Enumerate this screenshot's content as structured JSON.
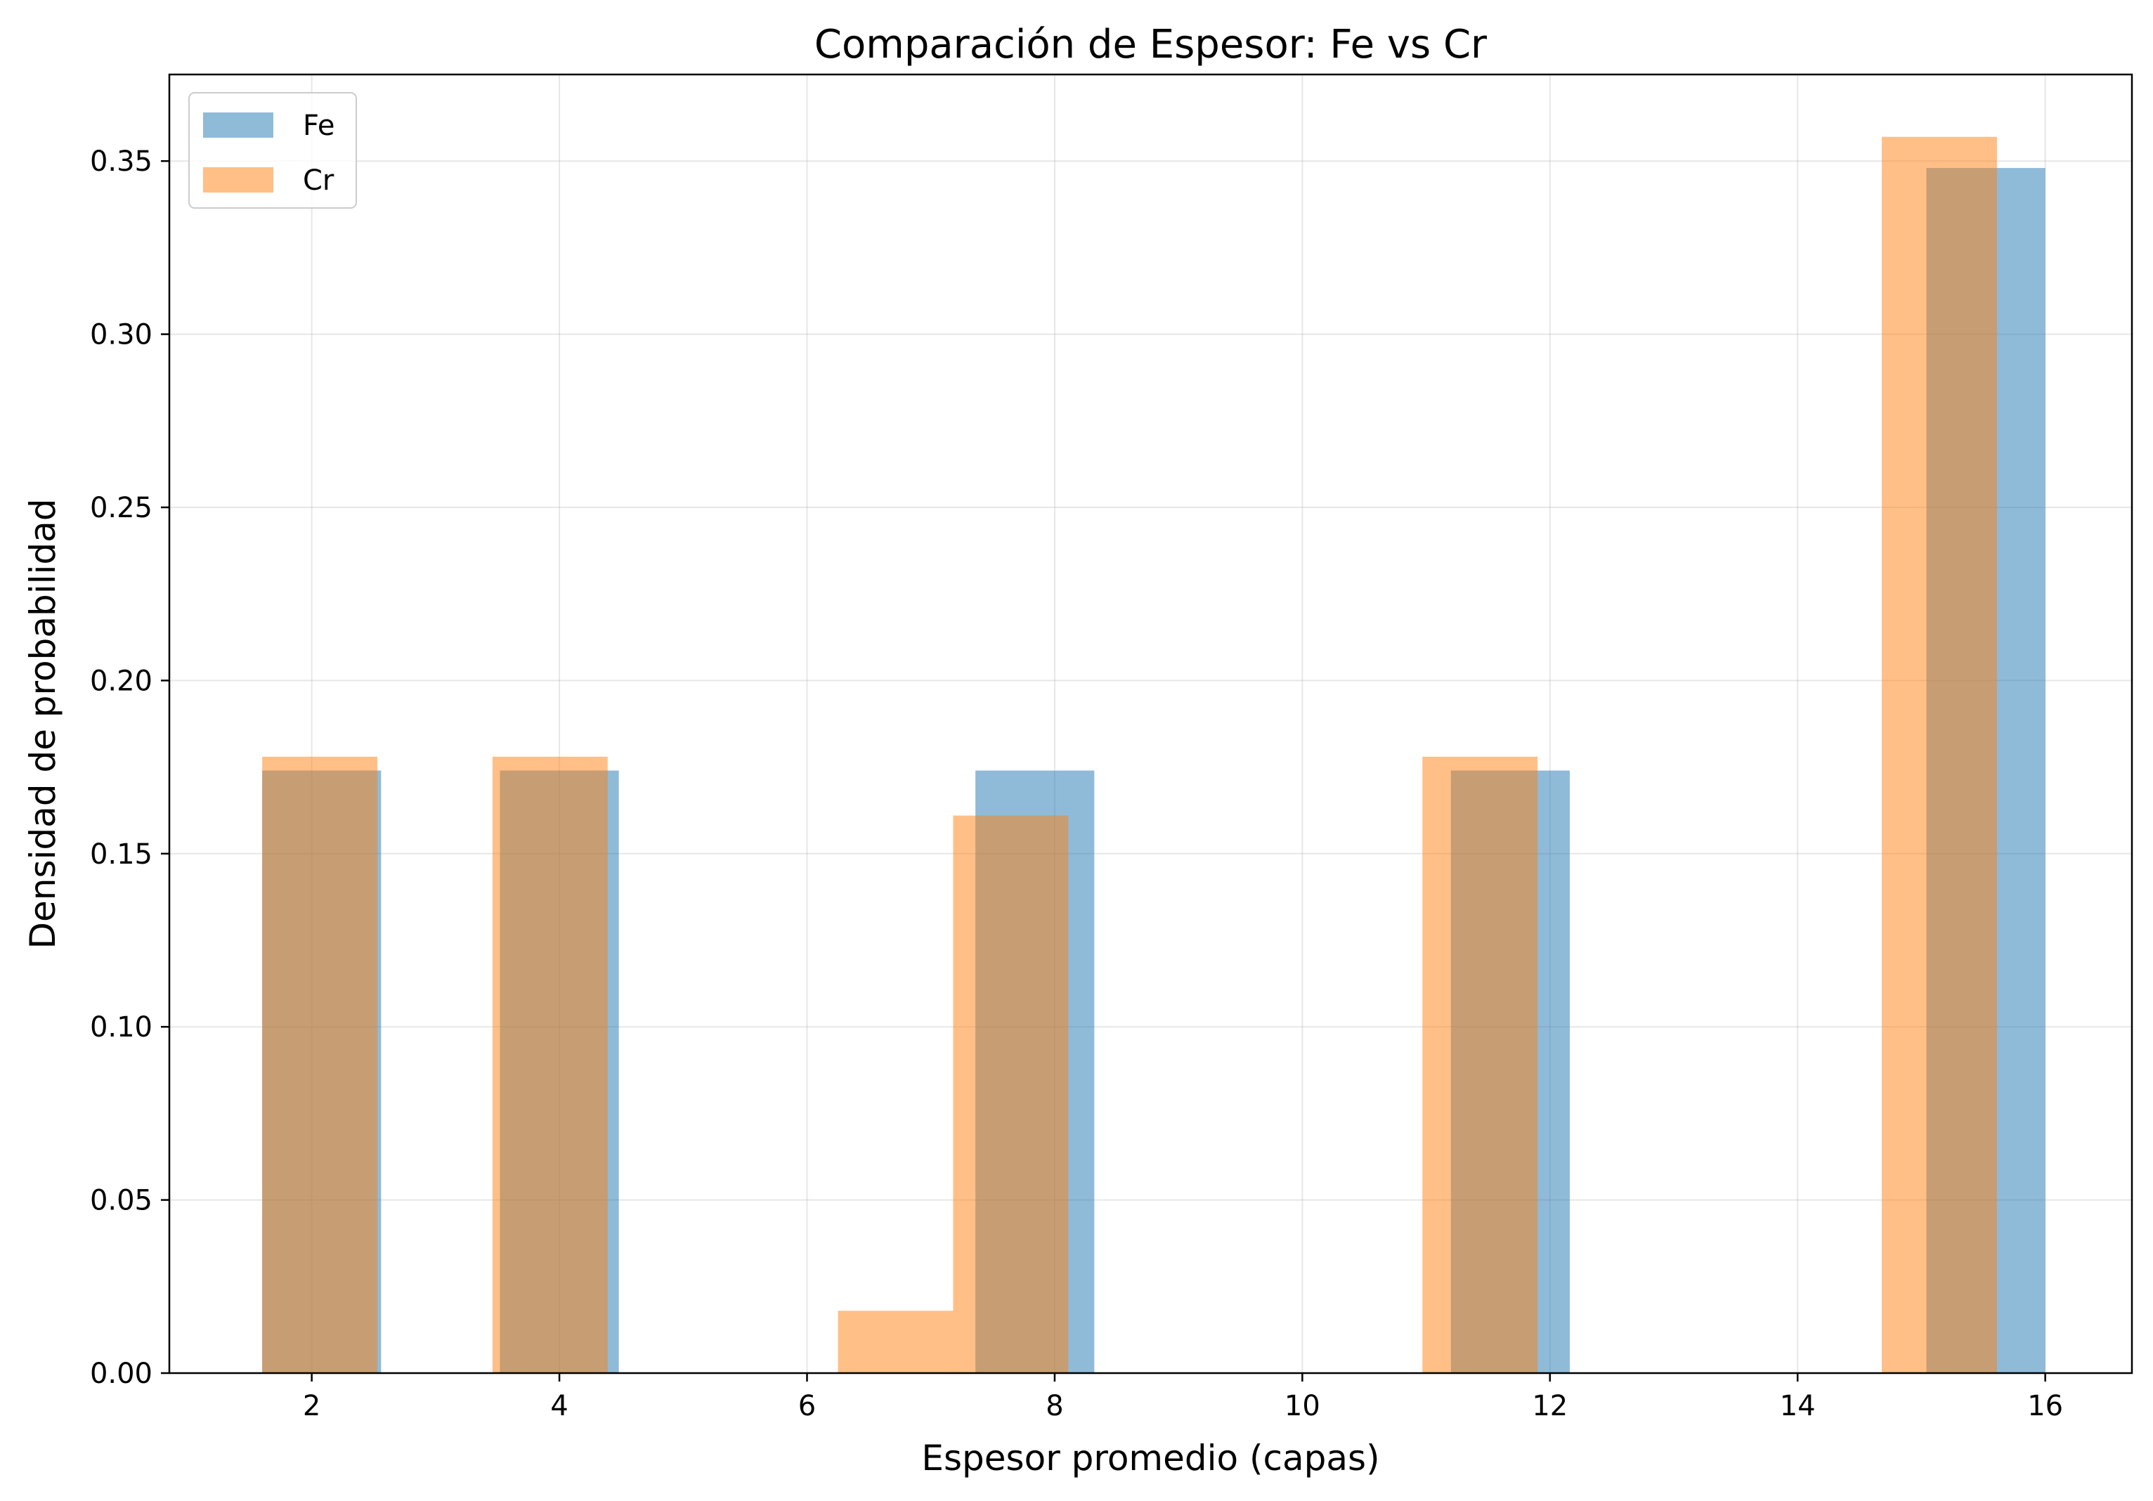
{
  "chart_data": {
    "type": "histogram",
    "title": "Comparación de Espesor: Fe vs Cr",
    "xlabel": "Espesor promedio (capas)",
    "ylabel": "Densidad de probabilidad",
    "xlim": [
      0.85,
      16.7
    ],
    "ylim": [
      0,
      0.375
    ],
    "xticks": [
      "2",
      "4",
      "6",
      "8",
      "10",
      "12",
      "14",
      "16"
    ],
    "yticks": [
      "0.00",
      "0.05",
      "0.10",
      "0.15",
      "0.20",
      "0.25",
      "0.30",
      "0.35"
    ],
    "grid": true,
    "legend_position": "top-left",
    "series": [
      {
        "name": "Fe",
        "color": "#1f77b4",
        "opacity": 0.5,
        "bins": [
          {
            "x0": 1.6,
            "x1": 2.56,
            "value": 0.174
          },
          {
            "x0": 3.52,
            "x1": 4.48,
            "value": 0.174
          },
          {
            "x0": 7.36,
            "x1": 8.32,
            "value": 0.174
          },
          {
            "x0": 11.2,
            "x1": 12.16,
            "value": 0.174
          },
          {
            "x0": 15.04,
            "x1": 16.0,
            "value": 0.348
          }
        ]
      },
      {
        "name": "Cr",
        "color": "#ff7f0e",
        "opacity": 0.5,
        "bins": [
          {
            "x0": 1.6,
            "x1": 2.53,
            "value": 0.178
          },
          {
            "x0": 3.46,
            "x1": 4.39,
            "value": 0.178
          },
          {
            "x0": 6.25,
            "x1": 7.18,
            "value": 0.018
          },
          {
            "x0": 7.18,
            "x1": 8.11,
            "value": 0.161
          },
          {
            "x0": 10.97,
            "x1": 11.9,
            "value": 0.178
          },
          {
            "x0": 14.68,
            "x1": 15.61,
            "value": 0.357
          }
        ]
      }
    ]
  }
}
